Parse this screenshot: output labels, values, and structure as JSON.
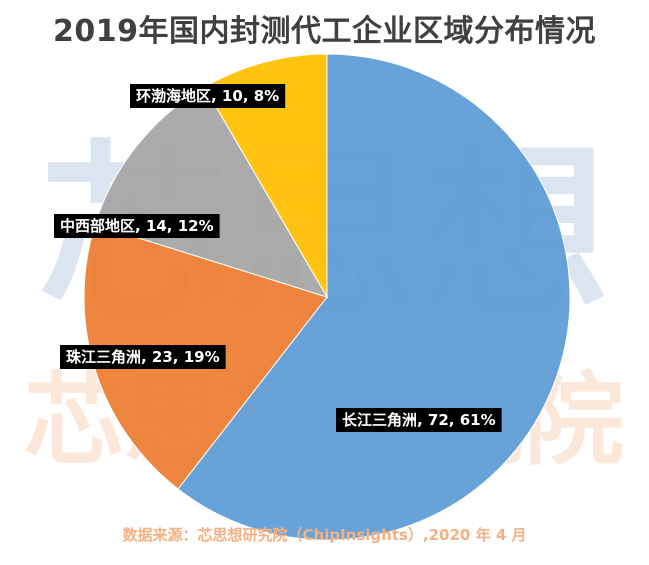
{
  "colors": {
    "yangtze": "#5B9BD5",
    "pearl": "#ED7D31",
    "central_west": "#A5A5A5",
    "bohai": "#FFC000",
    "title": "#404040",
    "source": "#F4B183",
    "watermark_blue": "#DCE3F1",
    "watermark_orange": "#FCE8DA"
  },
  "chart_data": {
    "type": "pie",
    "title": "2019年国内封测代工企业区域分布情况",
    "start_angle_deg": 0,
    "direction": "clockwise",
    "slices": [
      {
        "name": "长江三角洲",
        "value": 72,
        "percent": "61%",
        "label": "长江三角洲, 72, 61%",
        "color_key": "yangtze"
      },
      {
        "name": "珠江三角洲",
        "value": 23,
        "percent": "19%",
        "label": "珠江三角洲, 23, 19%",
        "color_key": "pearl"
      },
      {
        "name": "中西部地区",
        "value": 14,
        "percent": "12%",
        "label": "中西部地区, 14, 12%",
        "color_key": "central_west"
      },
      {
        "name": "环渤海地区",
        "value": 10,
        "percent": "8%",
        "label": "环渤海地区, 10, 8%",
        "color_key": "bohai"
      }
    ]
  },
  "watermark": {
    "line1": "芯思想",
    "line2": "芯思想研究院"
  },
  "source_text": "数据来源：芯思想研究院（ChipInsights）,2020 年 4 月"
}
